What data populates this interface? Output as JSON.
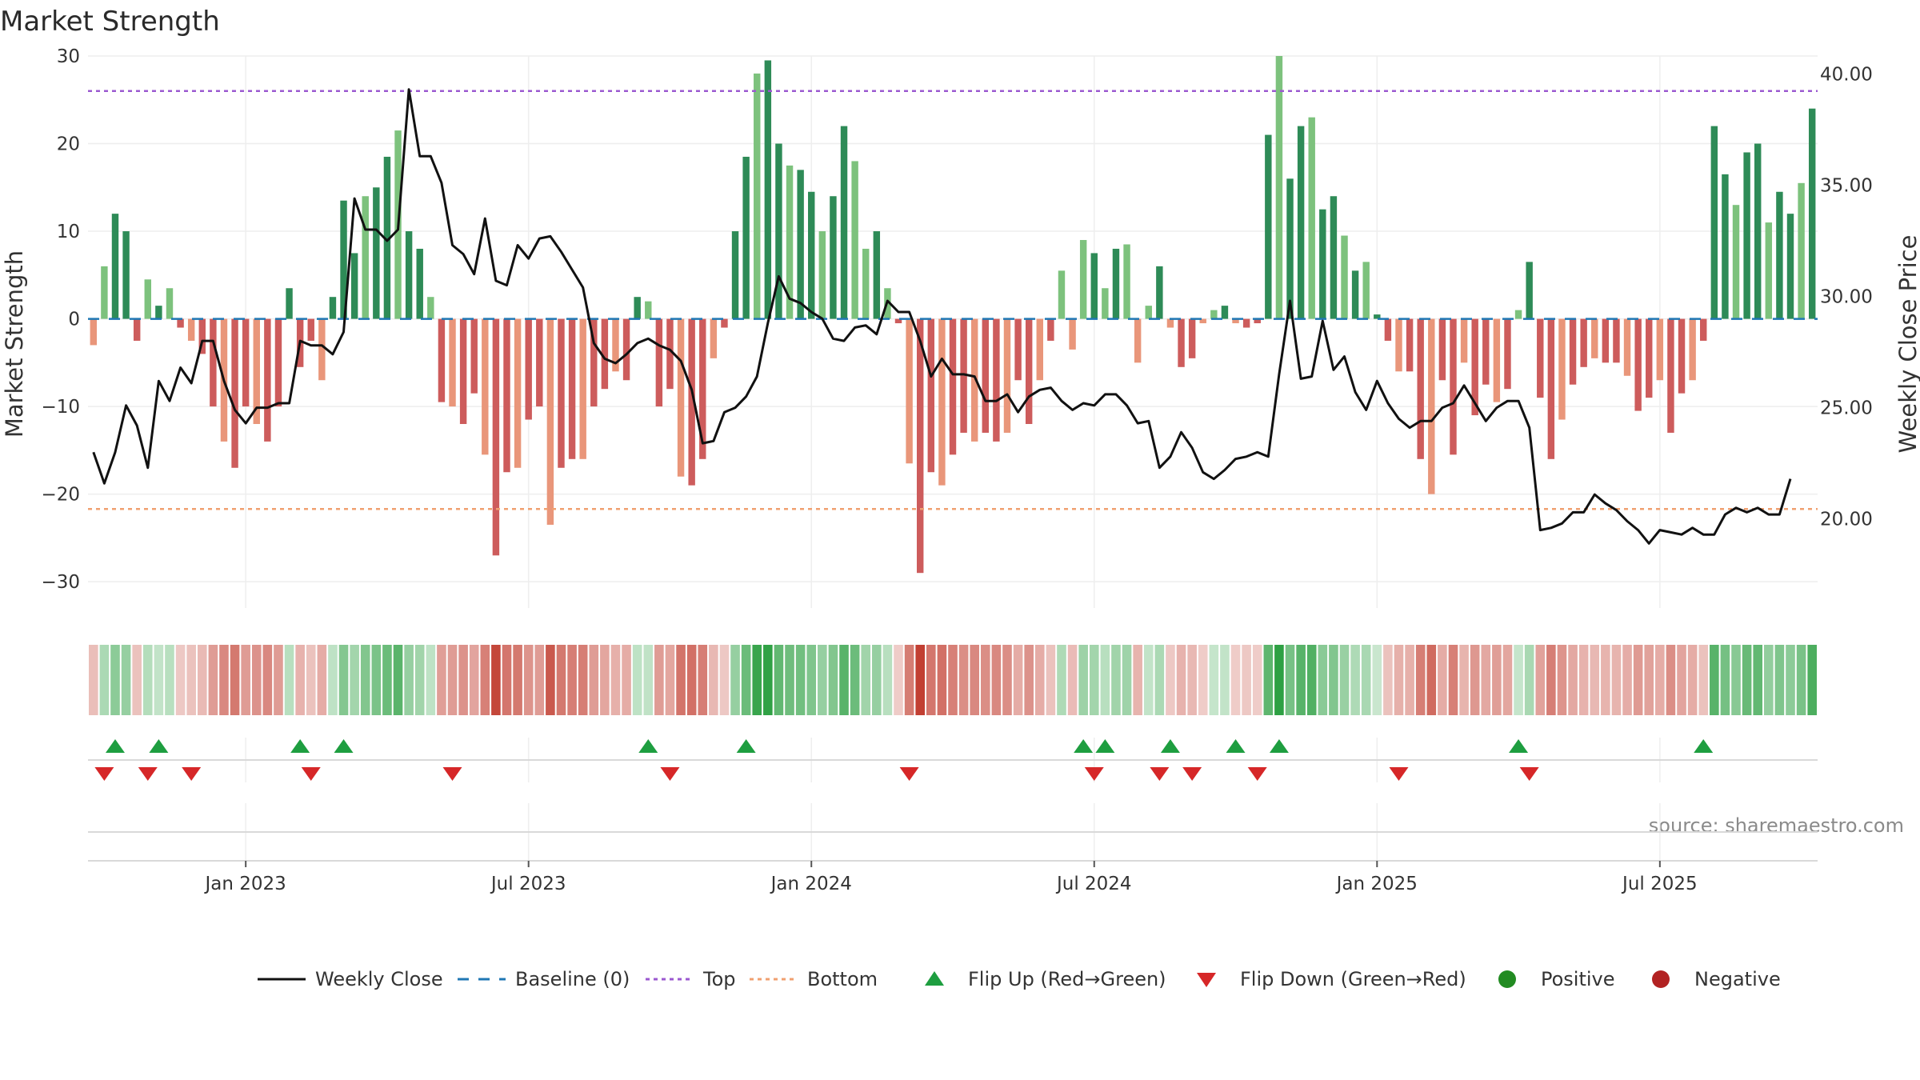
{
  "chart_data": {
    "type": "bar",
    "title": "Market Strength",
    "ylabel": "Market Strength",
    "y2label": "Weekly Close Price",
    "source": "source: sharemaestro.com",
    "ylim": [
      -33,
      30
    ],
    "y2lim": [
      16,
      40.8
    ],
    "yticks": [
      30,
      20,
      10,
      0,
      -10,
      -20,
      -30
    ],
    "ytick_labels": [
      "30",
      "20",
      "10",
      "0",
      "−10",
      "−20",
      "−30"
    ],
    "y2ticks": [
      40,
      35,
      30,
      25,
      20
    ],
    "y2tick_labels": [
      "40.00",
      "35.00",
      "30.00",
      "25.00",
      "20.00"
    ],
    "top_level": 26,
    "bottom_level": -21.7,
    "xticks": [
      {
        "label": "Jan 2023",
        "week": 14
      },
      {
        "label": "Jul 2023",
        "week": 40
      },
      {
        "label": "Jan 2024",
        "week": 66
      },
      {
        "label": "Jul 2024",
        "week": 92
      },
      {
        "label": "Jan 2025",
        "week": 118
      },
      {
        "label": "Jul 2025",
        "week": 144
      }
    ],
    "strength": [
      -3,
      6,
      12,
      10,
      -2.5,
      4.5,
      1.5,
      3.5,
      -1,
      -2.5,
      -4,
      -10,
      -14,
      -17,
      -10,
      -12,
      -14,
      -10,
      3.5,
      -5.5,
      -2.5,
      -7,
      2.5,
      13.5,
      7.5,
      14,
      15,
      18.5,
      21.5,
      10,
      8,
      2.5,
      -9.5,
      -10,
      -12,
      -8.5,
      -15.5,
      -27,
      -17.5,
      -17,
      -11.5,
      -10,
      -23.5,
      -17,
      -16,
      -16,
      -10,
      -8,
      -6,
      -7,
      2.5,
      2,
      -10,
      -8,
      -18,
      -19,
      -16,
      -4.5,
      -1,
      10,
      18.5,
      28,
      29.5,
      20,
      17.5,
      17,
      14.5,
      10,
      14,
      22,
      18,
      8,
      10,
      3.5,
      -0.5,
      -16.5,
      -29,
      -17.5,
      -19,
      -15.5,
      -13,
      -14,
      -13,
      -14,
      -13,
      -7,
      -12,
      -7,
      -2.5,
      5.5,
      -3.5,
      9,
      7.5,
      3.5,
      8,
      8.5,
      -5,
      1.5,
      6,
      -1,
      -5.5,
      -4.5,
      -0.5,
      1,
      1.5,
      -0.5,
      -1,
      -0.5,
      21,
      30,
      16,
      22,
      23,
      12.5,
      14,
      9.5,
      5.5,
      6.5,
      0.5,
      -2.5,
      -6,
      -6,
      -16,
      -20,
      -7,
      -15.5,
      -5,
      -11,
      -7.5,
      -9.5,
      -8,
      1,
      6.5,
      -9,
      -16,
      -11.5,
      -7.5,
      -5.5,
      -4.5,
      -5,
      -5,
      -6.5,
      -10.5,
      -9,
      -7,
      -13,
      -8.5,
      -7,
      -2.5,
      22,
      16.5,
      13,
      19,
      20,
      11,
      14.5,
      12,
      15.5,
      24
    ],
    "weekly_close": [
      23,
      21.6,
      23,
      25.1,
      24.2,
      22.3,
      26.2,
      25.3,
      26.8,
      26.1,
      28,
      28,
      26.2,
      24.9,
      24.3,
      25,
      25,
      25.2,
      25.2,
      28,
      27.8,
      27.8,
      27.4,
      28.4,
      34.4,
      33,
      33,
      32.5,
      33,
      39.3,
      36.3,
      36.3,
      35.1,
      32.3,
      31.9,
      31,
      33.5,
      30.7,
      30.5,
      32.3,
      31.7,
      32.6,
      32.7,
      32,
      31.2,
      30.4,
      27.9,
      27.2,
      27,
      27.4,
      27.9,
      28.1,
      27.8,
      27.6,
      27.1,
      25.8,
      23.4,
      23.5,
      24.8,
      25,
      25.5,
      26.4,
      28.8,
      30.9,
      29.9,
      29.7,
      29.3,
      29,
      28.1,
      28,
      28.6,
      28.7,
      28.3,
      29.8,
      29.3,
      29.3,
      28,
      26.4,
      27.2,
      26.5,
      26.5,
      26.4,
      25.3,
      25.3,
      25.6,
      24.8,
      25.5,
      25.8,
      25.9,
      25.3,
      24.9,
      25.2,
      25.1,
      25.6,
      25.6,
      25.1,
      24.3,
      24.4,
      22.3,
      22.8,
      23.9,
      23.2,
      22.1,
      21.8,
      22.2,
      22.7,
      22.8,
      23,
      22.8,
      26.5,
      29.8,
      26.3,
      26.4,
      28.9,
      26.7,
      27.3,
      25.7,
      24.9,
      26.2,
      25.2,
      24.5,
      24.1,
      24.4,
      24.4,
      25,
      25.2,
      26,
      25.2,
      24.4,
      25,
      25.3,
      25.3,
      24.1,
      19.5,
      19.6,
      19.8,
      20.3,
      20.3,
      21.1,
      20.7,
      20.4,
      19.9,
      19.5,
      18.9,
      19.5,
      19.4,
      19.3,
      19.6,
      19.3,
      19.3,
      20.2,
      20.5,
      20.3,
      20.5,
      20.2,
      20.2,
      21.8
    ],
    "flip_up_weeks": [
      2,
      6,
      19,
      23,
      51,
      60,
      91,
      93,
      99,
      105,
      109,
      131,
      148
    ],
    "flip_down_weeks": [
      1,
      5,
      9,
      20,
      33,
      53,
      75,
      92,
      98,
      101,
      107,
      120,
      132
    ],
    "legend": [
      {
        "label": "Weekly Close",
        "kind": "line-solid"
      },
      {
        "label": "Baseline (0)",
        "kind": "line-dashed"
      },
      {
        "label": "Top",
        "kind": "line-dotted-purple"
      },
      {
        "label": "Bottom",
        "kind": "line-dotted-orange"
      },
      {
        "label": "Flip Up (Red→Green)",
        "kind": "triangle-up"
      },
      {
        "label": "Flip Down (Green→Red)",
        "kind": "triangle-down"
      },
      {
        "label": "Positive",
        "kind": "dot-green"
      },
      {
        "label": "Negative",
        "kind": "dot-red"
      }
    ],
    "colors": {
      "pos_strong": "#2e8b57",
      "pos_weak": "#7dc27d",
      "neg_strong": "#cd5c5c",
      "neg_weak": "#e9967a",
      "price_line": "#111111",
      "baseline": "#1f77b4",
      "top_line": "#9b59d0",
      "bottom_line": "#f0a070",
      "flip_up": "#1e9e40",
      "flip_down": "#d62728",
      "positive_dot": "#228b22",
      "negative_dot": "#b22222",
      "grid": "#eeeeee"
    }
  }
}
